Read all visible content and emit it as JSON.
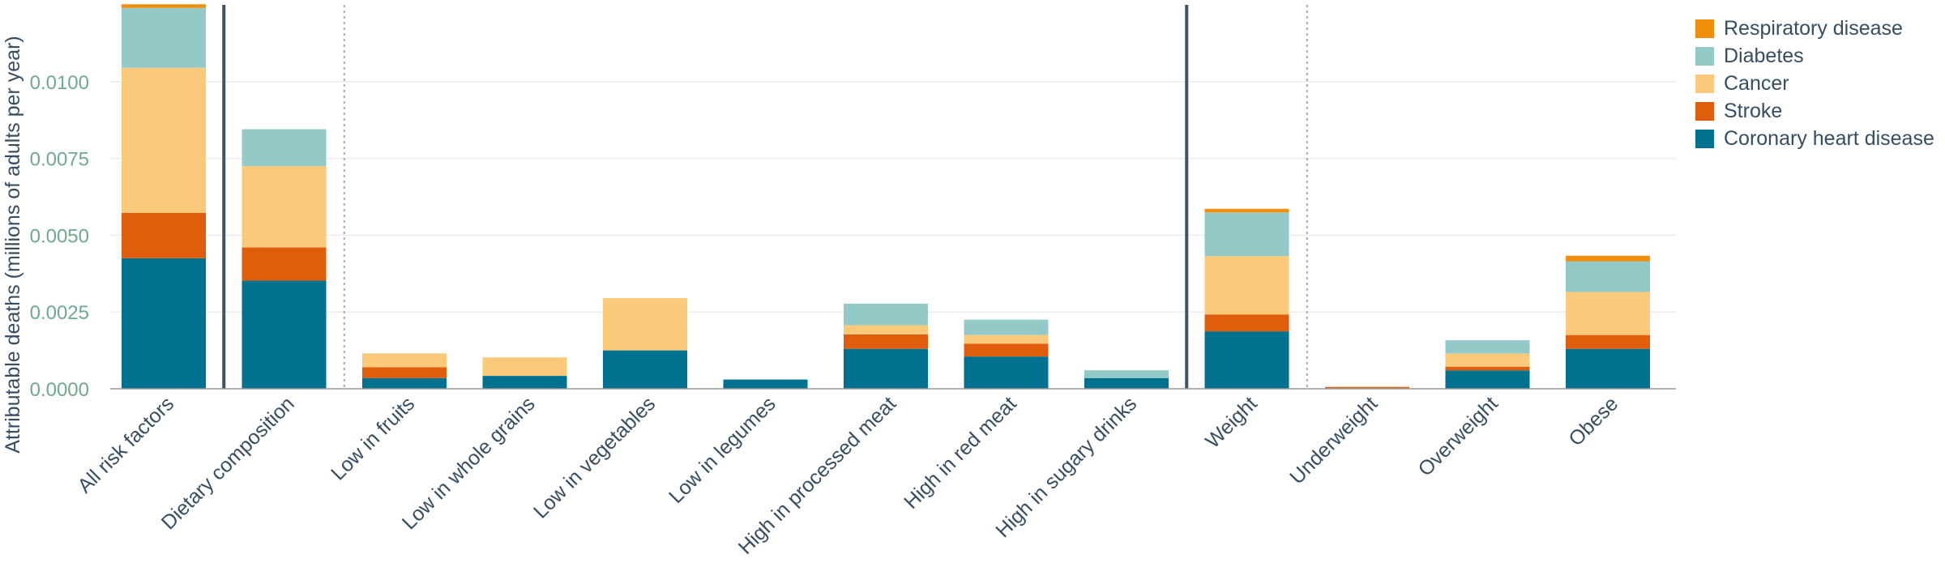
{
  "chart_data": {
    "type": "bar",
    "stacked": true,
    "ylabel": "Attributable deaths (millions of adults per year)",
    "ylim": [
      0,
      0.0125
    ],
    "yticks": [
      "0.0000",
      "0.0025",
      "0.0050",
      "0.0075",
      "0.0100"
    ],
    "grid": true,
    "legend_position": "top-right",
    "categories": [
      "All risk factors",
      "Dietary composition",
      "Low in fruits",
      "Low in whole grains",
      "Low in vegetables",
      "Low in legumes",
      "High in processed meat",
      "High in red meat",
      "High in sugary drinks",
      "Weight",
      "Underweight",
      "Overweight",
      "Obese"
    ],
    "series": [
      {
        "name": "Coronary heart disease",
        "color": "#00718f",
        "values": [
          0.00425,
          0.00352,
          0.00035,
          0.00042,
          0.00125,
          0.0003,
          0.0013,
          0.00105,
          0.00035,
          0.00187,
          2e-05,
          0.0006,
          0.0013
        ]
      },
      {
        "name": "Stroke",
        "color": "#e05e0b",
        "values": [
          0.00148,
          0.00108,
          0.00035,
          0.0,
          0.0,
          0.0,
          0.00047,
          0.00042,
          0.0,
          0.00055,
          4e-05,
          0.00012,
          0.00045
        ]
      },
      {
        "name": "Cancer",
        "color": "#fbc97a",
        "values": [
          0.00472,
          0.00265,
          0.00045,
          0.0006,
          0.0017,
          0.0,
          0.0003,
          0.00028,
          0.0,
          0.0019,
          0.0,
          0.00043,
          0.0014
        ]
      },
      {
        "name": "Diabetes",
        "color": "#93c9c7",
        "values": [
          0.00195,
          0.0012,
          0.0,
          0.0,
          0.0,
          0.0,
          0.0007,
          0.0005,
          0.00025,
          0.00142,
          0.0,
          0.00043,
          0.001
        ]
      },
      {
        "name": "Respiratory disease",
        "color": "#f08f0b",
        "values": [
          0.00012,
          0.0,
          0.0,
          0.0,
          0.0,
          0.0,
          0.0,
          0.0,
          0.0,
          0.00012,
          0.0,
          0.0,
          0.00018
        ]
      }
    ],
    "group_separators": [
      {
        "after_index": 0,
        "style": "solid"
      },
      {
        "after_index": 1,
        "style": "dotted"
      },
      {
        "after_index": 8,
        "style": "solid"
      },
      {
        "after_index": 9,
        "style": "dotted"
      }
    ],
    "colors": {
      "axis_text": "#6fa98e",
      "category_text": "#374d61",
      "grid": "#ececec",
      "solid_separator": "#3d5466",
      "dotted_separator": "#a9a9a9",
      "baseline": "#9a9a9a"
    }
  }
}
